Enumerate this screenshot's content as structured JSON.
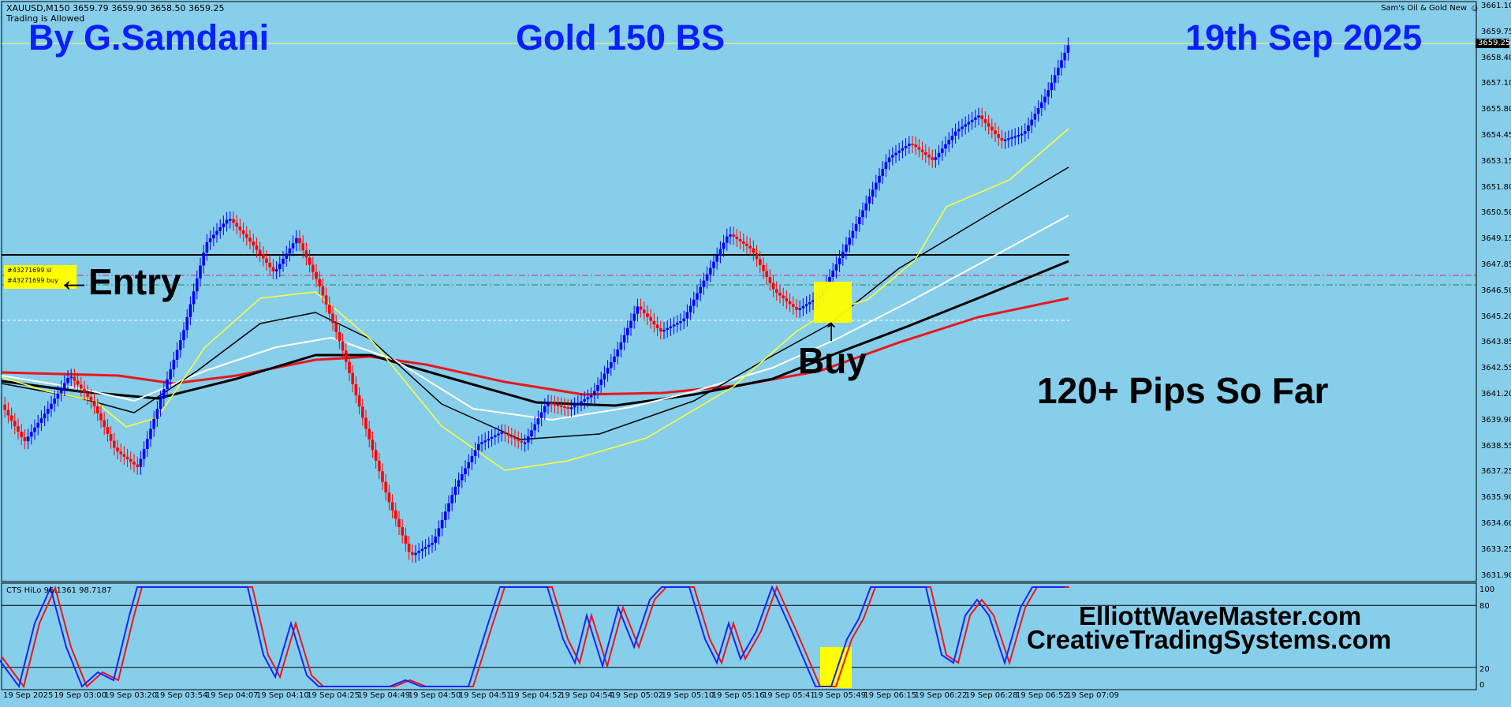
{
  "header": {
    "symbol_line": "XAUUSD,M150  3659.79 3659.90 3658.50 3659.25",
    "trading_status": "Trading is Allowed",
    "indicator_title": "Sam's Oil & Gold New"
  },
  "overlay": {
    "author": "By G.Samdani",
    "chart_title": "Gold 150 BS",
    "date": "19th Sep 2025",
    "entry_label": "Entry",
    "buy_label": "Buy",
    "pips_label": "120+ Pips So Far",
    "website_1": "ElliottWaveMaster.com",
    "website_2": "CreativeTradingSystems.com"
  },
  "trade": {
    "sl_label": "#43271699 sl",
    "buy_label": "#43271699 buy"
  },
  "price_axis": {
    "ticks": [
      "3661.10",
      "3659.75",
      "3658.40",
      "3657.10",
      "3655.80",
      "3654.45",
      "3653.15",
      "3651.80",
      "3650.50",
      "3649.15",
      "3647.85",
      "3646.50",
      "3645.20",
      "3643.85",
      "3642.55",
      "3641.20",
      "3639.90",
      "3638.55",
      "3637.25",
      "3635.90",
      "3634.60",
      "3633.25",
      "3631.90"
    ],
    "current_price": "3659.25"
  },
  "indicator": {
    "label": "CTS HiLo 96.1361 98.7187",
    "ticks": [
      "100",
      "80",
      "20",
      "0"
    ]
  },
  "time_axis": {
    "ticks": [
      "19 Sep 2025",
      "19 Sep 03:00",
      "19 Sep 03:20",
      "19 Sep 03:54",
      "19 Sep 04:07",
      "19 Sep 04:10",
      "19 Sep 04:25",
      "19 Sep 04:49",
      "19 Sep 04:50",
      "19 Sep 04:51",
      "19 Sep 04:52",
      "19 Sep 04:54",
      "19 Sep 05:02",
      "19 Sep 05:10",
      "19 Sep 05:16",
      "19 Sep 05:41",
      "19 Sep 05:49",
      "19 Sep 06:15",
      "19 Sep 06:22",
      "19 Sep 06:28",
      "19 Sep 06:52",
      "19 Sep 07:09"
    ]
  },
  "colors": {
    "background": "#87CEEB",
    "up_candle": "#0000ff",
    "down_candle": "#ff0000",
    "title_text": "#0a1fff",
    "highlight": "#ffff00"
  },
  "chart_data": {
    "type": "line",
    "title": "Gold 150 BS",
    "xlabel": "",
    "ylabel": "",
    "ylim": [
      3631.9,
      3661.1
    ],
    "series": [
      {
        "name": "XAUUSD,M150",
        "values": [
          3640.9,
          3639.0,
          3640.6,
          3642.4,
          3641.0,
          3638.6,
          3637.7,
          3641.2,
          3644.6,
          3649.1,
          3650.4,
          3649.1,
          3647.6,
          3649.4,
          3646.9,
          3643.7,
          3639.8,
          3636.1,
          3633.2,
          3633.9,
          3636.8,
          3638.9,
          3639.5,
          3638.9,
          3641.0,
          3640.7,
          3641.4,
          3643.4,
          3645.9,
          3644.6,
          3645.2,
          3647.4,
          3649.6,
          3648.8,
          3646.7,
          3645.7,
          3646.4,
          3648.6,
          3651.0,
          3653.4,
          3654.2,
          3653.3,
          3654.8,
          3655.6,
          3654.3,
          3654.7,
          3656.7,
          3659.3
        ]
      }
    ],
    "indicator_series": [
      {
        "name": "CTS HiLo",
        "values": [
          100,
          80,
          20,
          0
        ]
      }
    ]
  }
}
